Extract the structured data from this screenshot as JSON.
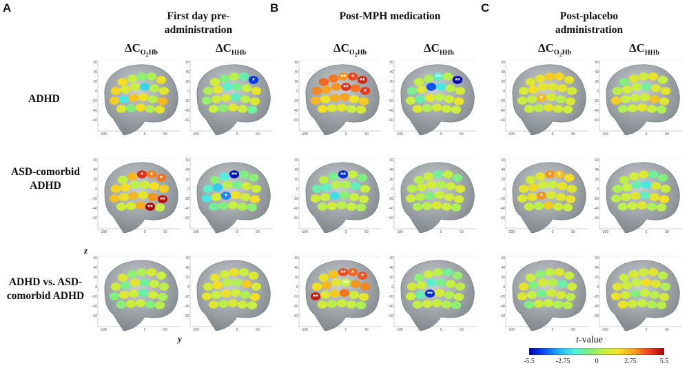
{
  "panels": [
    {
      "letter": "A",
      "title": "First day pre-administration"
    },
    {
      "letter": "B",
      "title": "Post-MPH medication"
    },
    {
      "letter": "C",
      "title": "Post-placebo administration"
    }
  ],
  "columns": {
    "delta": "ΔC",
    "o2hb_sub_main": "O",
    "o2hb_sub_2": "2",
    "o2hb_sub_tail": "Hb",
    "hhb_sub": "HHb"
  },
  "rows": [
    {
      "label": "ADHD"
    },
    {
      "label": "ASD-comorbid ADHD"
    },
    {
      "label": "ADHD vs. ASD-comorbid ADHD"
    }
  ],
  "axes": {
    "z_label": "z",
    "y_label": "y",
    "z_ticks": [
      "60",
      "40",
      "20",
      "0",
      "-20",
      "-40",
      "-60"
    ],
    "y_ticks": [
      "-100",
      "-50",
      "0",
      "50"
    ]
  },
  "colorbar": {
    "title": "t-value",
    "min": -5.5,
    "max": 5.5,
    "tick_labels": [
      "-5.5",
      "-2.75",
      "0",
      "2.75",
      "5.5"
    ],
    "colors": [
      "#0000a8",
      "#0a4cff",
      "#1fb5ff",
      "#4ff0e0",
      "#7ef07e",
      "#c8f040",
      "#f5e020",
      "#f5a020",
      "#ee4020",
      "#b00000"
    ]
  },
  "channel_values": [
    [
      [
        1.8,
        0.6,
        -0.4,
        0.2,
        1.6,
        2.0,
        1.2,
        0.8,
        -2.4,
        0.4,
        1.4,
        2.2,
        -2.0,
        2.4,
        1.6,
        0.4,
        2.6,
        1.2,
        -0.6,
        1.8,
        0.2,
        1.4
      ],
      [
        0.8,
        -0.6,
        0.4,
        -1.2,
        -4.6,
        0.2,
        1.4,
        -1.6,
        -0.8,
        0.6,
        1.6,
        -0.2,
        0.8,
        1.2,
        -1.4,
        0.4,
        1.2,
        0.6,
        -0.4,
        1.2,
        0.8,
        -1.0
      ]
    ],
    [
      [
        3.8,
        3.6,
        3.2,
        4.2,
        4.8,
        3.4,
        3.0,
        3.2,
        4.6,
        3.6,
        4.4,
        2.6,
        1.6,
        2.8,
        3.0,
        1.6,
        2.2,
        1.8,
        1.2,
        1.4,
        0.6,
        1.0
      ],
      [
        0.6,
        0.2,
        -1.6,
        0.4,
        -5.4,
        -0.8,
        1.2,
        -4.2,
        -2.0,
        0.4,
        1.0,
        0.6,
        -1.2,
        1.4,
        0.4,
        0.8,
        1.6,
        1.2,
        0.2,
        1.0,
        0.8,
        0.6
      ]
    ],
    [
      [
        1.2,
        1.6,
        2.2,
        2.0,
        1.4,
        1.0,
        1.8,
        1.4,
        1.2,
        1.4,
        1.0,
        0.8,
        0.6,
        2.6,
        1.0,
        0.4,
        1.2,
        0.6,
        0.4,
        1.4,
        1.0,
        0.8
      ],
      [
        -0.6,
        1.2,
        0.8,
        1.6,
        0.6,
        0.4,
        1.0,
        0.6,
        -1.0,
        1.2,
        1.4,
        2.2,
        0.6,
        0.8,
        0.8,
        2.4,
        1.2,
        0.2,
        0.8,
        1.4,
        0.6,
        0.2
      ]
    ],
    [
      [
        0.6,
        2.6,
        4.6,
        3.4,
        3.6,
        2.0,
        1.8,
        0.4,
        0.8,
        1.8,
        2.2,
        2.4,
        1.6,
        2.6,
        1.4,
        3.2,
        5.2,
        0.8,
        1.0,
        2.8,
        5.4,
        0.6
      ],
      [
        -0.4,
        -1.8,
        -5.2,
        -0.6,
        -0.4,
        -1.6,
        -2.6,
        0.4,
        -0.8,
        1.0,
        0.8,
        -2.0,
        1.0,
        -3.6,
        1.6,
        0.8,
        1.8,
        -1.0,
        -0.6,
        0.6,
        0.2,
        -0.4
      ]
    ],
    [
      [
        0.4,
        -0.8,
        -4.8,
        0.6,
        -0.6,
        -1.2,
        -1.4,
        0.4,
        0.2,
        -1.4,
        0.6,
        0.8,
        0.6,
        -2.2,
        -0.4,
        0.6,
        0.8,
        0.4,
        0.8,
        0.4,
        0.6,
        0.2
      ],
      [
        0.4,
        0.8,
        -1.0,
        0.6,
        -0.6,
        0.4,
        0.8,
        1.0,
        0.2,
        0.6,
        1.2,
        0.8,
        0.4,
        -0.6,
        0.6,
        0.8,
        1.0,
        0.2,
        0.4,
        1.2,
        0.6,
        0.2
      ]
    ],
    [
      [
        0.8,
        1.4,
        3.2,
        2.4,
        1.8,
        1.4,
        2.0,
        0.8,
        0.6,
        1.6,
        1.2,
        1.2,
        1.4,
        3.2,
        1.0,
        1.2,
        1.6,
        0.6,
        0.4,
        2.2,
        0.8,
        0.6
      ],
      [
        0.4,
        0.8,
        1.2,
        -1.0,
        -0.6,
        0.2,
        0.6,
        -1.2,
        -2.0,
        1.0,
        0.8,
        0.4,
        0.6,
        1.2,
        -1.4,
        1.4,
        1.8,
        0.4,
        0.6,
        1.2,
        0.2,
        0.4
      ]
    ],
    [
      [
        1.2,
        -0.4,
        0.2,
        1.0,
        0.6,
        0.8,
        -0.8,
        1.4,
        -1.0,
        0.6,
        0.4,
        -0.6,
        1.2,
        0.8,
        -1.2,
        1.0,
        0.2,
        -0.4,
        0.8,
        0.6,
        -0.6,
        0.4
      ],
      [
        1.4,
        0.8,
        1.6,
        0.6,
        1.2,
        1.0,
        1.8,
        0.4,
        0.2,
        2.2,
        1.0,
        1.4,
        0.6,
        1.6,
        0.8,
        0.2,
        1.8,
        1.2,
        0.4,
        1.0,
        0.8,
        0.6
      ]
    ],
    [
      [
        1.6,
        2.4,
        4.2,
        3.8,
        4.0,
        1.8,
        2.6,
        1.2,
        0.6,
        3.2,
        3.4,
        5.0,
        1.2,
        2.2,
        3.6,
        0.8,
        1.4,
        1.0,
        0.4,
        0.8,
        0.6,
        0.2
      ],
      [
        -0.4,
        0.6,
        0.4,
        -1.0,
        -0.2,
        1.0,
        0.8,
        -1.6,
        -0.8,
        0.6,
        0.4,
        0.8,
        -1.2,
        -4.8,
        1.0,
        0.2,
        0.6,
        0.4,
        0.8,
        0.6,
        0.2,
        -0.4
      ]
    ],
    [
      [
        0.8,
        -0.4,
        0.4,
        1.2,
        0.6,
        1.6,
        -0.6,
        1.0,
        0.4,
        -1.2,
        0.8,
        1.2,
        0.6,
        -0.8,
        0.8,
        1.0,
        0.4,
        -0.6,
        0.8,
        0.6,
        0.2,
        0.4
      ],
      [
        0.6,
        1.0,
        0.8,
        1.4,
        0.4,
        1.2,
        0.8,
        0.6,
        1.8,
        1.2,
        0.2,
        1.6,
        0.8,
        -0.6,
        0.6,
        0.4,
        1.0,
        1.6,
        0.8,
        0.6,
        0.2,
        0.4
      ]
    ]
  ],
  "significance": [
    [
      [],
      [
        {
          "ch": 4,
          "mark": "*"
        }
      ]
    ],
    [
      [
        {
          "ch": 2,
          "mark": "**"
        },
        {
          "ch": 3,
          "mark": "*"
        },
        {
          "ch": 4,
          "mark": "**"
        },
        {
          "ch": 8,
          "mark": "**"
        },
        {
          "ch": 10,
          "mark": "*"
        }
      ],
      [
        {
          "ch": 2,
          "mark": "**"
        },
        {
          "ch": 4,
          "mark": "**"
        }
      ]
    ],
    [
      [
        {
          "ch": 13,
          "mark": "*"
        }
      ],
      []
    ],
    [
      [
        {
          "ch": 2,
          "mark": "*"
        },
        {
          "ch": 3,
          "mark": "*"
        },
        {
          "ch": 4,
          "mark": "*"
        },
        {
          "ch": 16,
          "mark": "**"
        },
        {
          "ch": 20,
          "mark": "**"
        }
      ],
      [
        {
          "ch": 2,
          "mark": "**"
        },
        {
          "ch": 13,
          "mark": "*"
        }
      ]
    ],
    [
      [
        {
          "ch": 2,
          "mark": "**"
        }
      ],
      []
    ],
    [
      [
        {
          "ch": 2,
          "mark": "*"
        },
        {
          "ch": 3,
          "mark": "*"
        },
        {
          "ch": 13,
          "mark": "*"
        }
      ],
      []
    ],
    [
      [],
      []
    ],
    [
      [
        {
          "ch": 2,
          "mark": "**"
        },
        {
          "ch": 3,
          "mark": "*"
        },
        {
          "ch": 4,
          "mark": "*"
        },
        {
          "ch": 11,
          "mark": "**"
        },
        {
          "ch": 8,
          "mark": "**"
        }
      ],
      [
        {
          "ch": 13,
          "mark": "**"
        }
      ]
    ],
    [
      [],
      []
    ]
  ]
}
